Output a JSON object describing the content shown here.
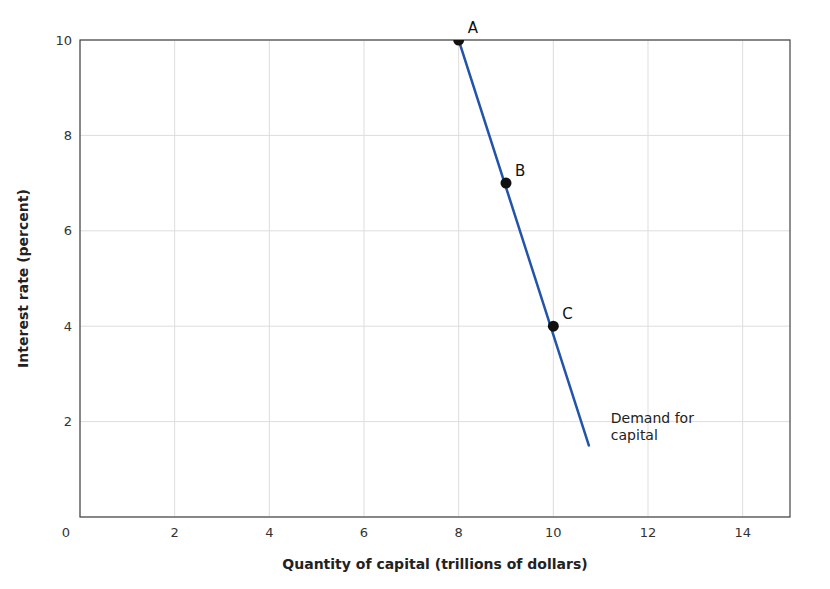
{
  "chart_data": {
    "type": "line",
    "xlabel": "Quantity of capital (trillions of dollars)",
    "ylabel": "Interest rate (percent)",
    "xlim": [
      0,
      15
    ],
    "ylim": [
      0,
      10
    ],
    "xticks": [
      0,
      2,
      4,
      6,
      8,
      10,
      12,
      14
    ],
    "yticks": [
      0,
      2,
      4,
      6,
      8,
      10
    ],
    "grid": true,
    "series": [
      {
        "name": "Demand for\ncapital",
        "type": "line",
        "color": "#2255aa",
        "x": [
          8,
          10.75
        ],
        "values": [
          10,
          1.5
        ]
      },
      {
        "type": "scatter",
        "color": "#111111",
        "x": [
          8,
          9,
          10
        ],
        "values": [
          10,
          7,
          4
        ],
        "labels": [
          "A",
          "B",
          "C"
        ]
      }
    ]
  }
}
